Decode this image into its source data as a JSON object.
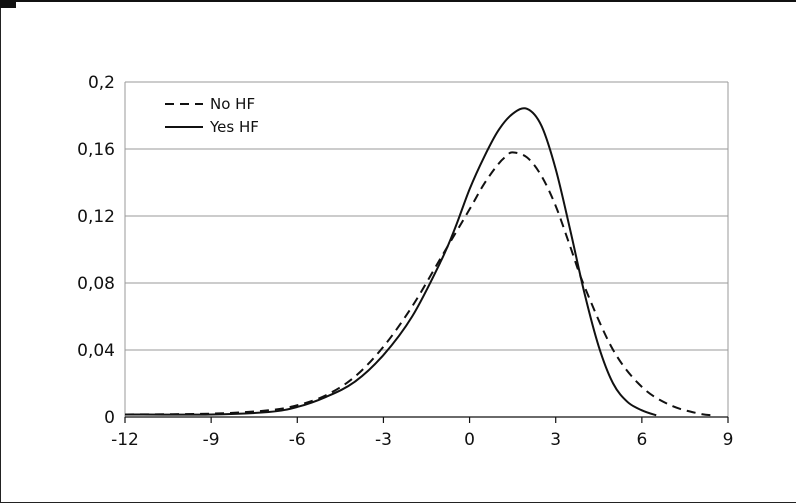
{
  "chart_data": {
    "type": "line",
    "title": "",
    "xlabel": "",
    "ylabel": "",
    "xlim": [
      -12,
      9
    ],
    "ylim": [
      0,
      0.2
    ],
    "x_ticks": [
      -12,
      -9,
      -6,
      -3,
      0,
      3,
      6,
      9
    ],
    "x_tick_labels": [
      "-12",
      "-9",
      "-6",
      "-3",
      "0",
      "3",
      "6",
      "9"
    ],
    "y_ticks": [
      0,
      0.04,
      0.08,
      0.12,
      0.16,
      0.2
    ],
    "y_tick_labels": [
      "0",
      "0,04",
      "0,08",
      "0,12",
      "0,16",
      "0,2"
    ],
    "grid": "horizontal",
    "legend_position": "top-left",
    "series": [
      {
        "name": "No HF",
        "style": "dashed",
        "color": "#111111",
        "x": [
          -12,
          -9,
          -7,
          -6,
          -5,
          -4,
          -3,
          -2,
          -1,
          0,
          0.5,
          1,
          1.3,
          1.5,
          2,
          2.5,
          3,
          3.5,
          4,
          5,
          6,
          7,
          8,
          8.5
        ],
        "y": [
          0.0015,
          0.002,
          0.004,
          0.007,
          0.013,
          0.024,
          0.042,
          0.066,
          0.095,
          0.124,
          0.139,
          0.151,
          0.156,
          0.158,
          0.155,
          0.144,
          0.126,
          0.102,
          0.078,
          0.04,
          0.018,
          0.007,
          0.002,
          0.001
        ]
      },
      {
        "name": "Yes HF",
        "style": "solid",
        "color": "#111111",
        "x": [
          -12,
          -9,
          -7,
          -6,
          -5,
          -4,
          -3,
          -2,
          -1,
          -0.5,
          0,
          0.5,
          1,
          1.5,
          2,
          2.5,
          3,
          3.5,
          4,
          4.5,
          5,
          5.5,
          6,
          6.5
        ],
        "y": [
          0.0015,
          0.0015,
          0.003,
          0.006,
          0.012,
          0.021,
          0.037,
          0.06,
          0.093,
          0.113,
          0.136,
          0.155,
          0.171,
          0.181,
          0.184,
          0.174,
          0.148,
          0.112,
          0.074,
          0.042,
          0.02,
          0.009,
          0.004,
          0.001
        ]
      }
    ]
  }
}
